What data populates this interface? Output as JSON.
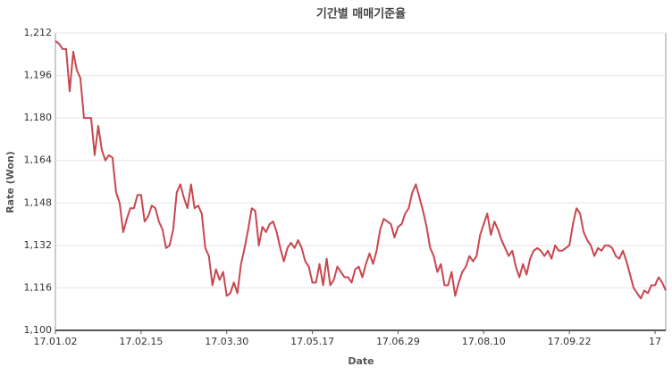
{
  "chart_data": {
    "type": "line",
    "title": "기간별 매매기준율",
    "x_label": "Date",
    "y_label": "Rate (Won)",
    "categories": [
      "17.01.02",
      null,
      null,
      null,
      null,
      null,
      null,
      null,
      null,
      null,
      null,
      null,
      null,
      null,
      null,
      null,
      null,
      null,
      null,
      null,
      null,
      null,
      null,
      null,
      "17.02.15",
      null,
      null,
      null,
      null,
      null,
      null,
      null,
      null,
      null,
      null,
      null,
      null,
      null,
      null,
      null,
      null,
      null,
      null,
      null,
      null,
      null,
      null,
      null,
      "17.03.30",
      null,
      null,
      null,
      null,
      null,
      null,
      null,
      null,
      null,
      null,
      null,
      null,
      null,
      null,
      null,
      null,
      null,
      null,
      null,
      null,
      null,
      null,
      null,
      "17.05.17",
      null,
      null,
      null,
      null,
      null,
      null,
      null,
      null,
      null,
      null,
      null,
      null,
      null,
      null,
      null,
      null,
      null,
      null,
      null,
      null,
      null,
      null,
      null,
      "17.06.29",
      null,
      null,
      null,
      null,
      null,
      null,
      null,
      null,
      null,
      null,
      null,
      null,
      null,
      null,
      null,
      null,
      null,
      null,
      null,
      null,
      null,
      null,
      null,
      "17.08.10",
      null,
      null,
      null,
      null,
      null,
      null,
      null,
      null,
      null,
      null,
      null,
      null,
      null,
      null,
      null,
      null,
      null,
      null,
      null,
      null,
      null,
      null,
      null,
      "17.09.22",
      null,
      null,
      null,
      null,
      null,
      null,
      null,
      null,
      null,
      null,
      null,
      null,
      null,
      null,
      null,
      null,
      null,
      null,
      null,
      null,
      null,
      null,
      null,
      "17",
      null,
      null,
      null
    ],
    "series": [
      {
        "color": "#c8474f",
        "values": [
          1209,
          1208,
          1206,
          1206,
          1190,
          1205,
          1198,
          1195,
          1180,
          1180,
          1180,
          1166,
          1177,
          1168,
          1164,
          1166,
          1165,
          1152,
          1148,
          1137,
          1142,
          1146,
          1146,
          1151,
          1151,
          1141,
          1143,
          1147,
          1146,
          1141,
          1138,
          1131,
          1132,
          1138,
          1152,
          1155,
          1150,
          1146,
          1155,
          1146,
          1147,
          1144,
          1131,
          1128,
          1117,
          1123,
          1119,
          1122,
          1113,
          1114,
          1118,
          1114,
          1125,
          1131,
          1138,
          1146,
          1145,
          1132,
          1139,
          1137,
          1140,
          1141,
          1137,
          1131,
          1126,
          1131,
          1133,
          1131,
          1134,
          1131,
          1126,
          1124,
          1118,
          1118,
          1125,
          1117,
          1127,
          1117,
          1119,
          1124,
          1122,
          1120,
          1120,
          1118,
          1123,
          1124,
          1120,
          1125,
          1129,
          1125,
          1130,
          1138,
          1142,
          1141,
          1140,
          1135,
          1139,
          1140,
          1144,
          1146,
          1152,
          1155,
          1150,
          1145,
          1139,
          1131,
          1128,
          1122,
          1125,
          1117,
          1117,
          1122,
          1113,
          1118,
          1122,
          1124,
          1128,
          1126,
          1128,
          1136,
          1140,
          1144,
          1136,
          1141,
          1138,
          1134,
          1131,
          1128,
          1130,
          1124,
          1120,
          1125,
          1121,
          1127,
          1130,
          1131,
          1130,
          1128,
          1130,
          1127,
          1132,
          1130,
          1130,
          1131,
          1132,
          1140,
          1146,
          1144,
          1137,
          1134,
          1132,
          1128,
          1131,
          1130,
          1132,
          1132,
          1131,
          1128,
          1127,
          1130,
          1126,
          1121,
          1116,
          1114,
          1112,
          1115,
          1114,
          1117,
          1117,
          1120,
          1118,
          1115
        ]
      }
    ],
    "ylim": [
      1100,
      1212
    ],
    "yticks": [
      {
        "value": 1100,
        "label": "1,100"
      },
      {
        "value": 1116,
        "label": "1,116"
      },
      {
        "value": 1132,
        "label": "1,132"
      },
      {
        "value": 1148,
        "label": "1,148"
      },
      {
        "value": 1164,
        "label": "1,164"
      },
      {
        "value": 1180,
        "label": "1,180"
      },
      {
        "value": 1196,
        "label": "1,196"
      },
      {
        "value": 1212,
        "label": "1,212"
      }
    ],
    "grid": true
  }
}
